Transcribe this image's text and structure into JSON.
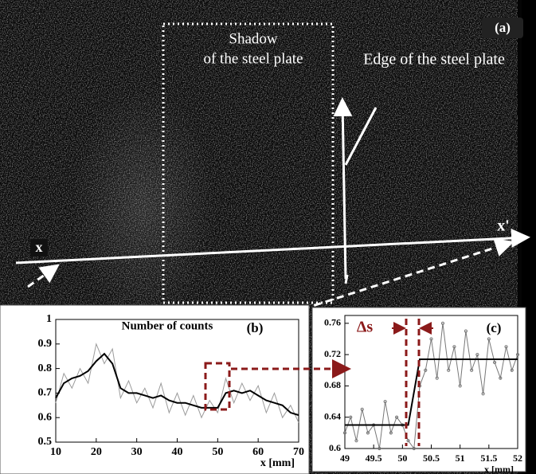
{
  "image": {
    "panel_label": "(a)",
    "shadow_label": [
      "Shadow",
      "of the steel plate"
    ],
    "edge_label": "Edge of  the steel plate",
    "axis_start": "x",
    "axis_end": "x'"
  },
  "chart_data": [
    {
      "type": "line",
      "panel_label": "(b)",
      "inner_label": "Number of counts",
      "xlabel": "x [mm]",
      "x": [
        10,
        12,
        14,
        16,
        18,
        20,
        22,
        24,
        26,
        28,
        30,
        32,
        34,
        36,
        38,
        40,
        42,
        44,
        46,
        48,
        50,
        52,
        54,
        56,
        58,
        60,
        62,
        64,
        66,
        68,
        70
      ],
      "series": [
        {
          "color": "#9a9a9a",
          "values": [
            0.66,
            0.78,
            0.72,
            0.8,
            0.74,
            0.9,
            0.82,
            0.88,
            0.68,
            0.75,
            0.66,
            0.72,
            0.64,
            0.74,
            0.62,
            0.7,
            0.61,
            0.69,
            0.6,
            0.67,
            0.62,
            0.76,
            0.66,
            0.74,
            0.67,
            0.73,
            0.62,
            0.7,
            0.6,
            0.65,
            0.58
          ]
        },
        {
          "color": "#000000",
          "values": [
            0.68,
            0.74,
            0.76,
            0.77,
            0.79,
            0.83,
            0.86,
            0.82,
            0.72,
            0.7,
            0.7,
            0.69,
            0.68,
            0.69,
            0.67,
            0.66,
            0.66,
            0.65,
            0.64,
            0.64,
            0.64,
            0.7,
            0.71,
            0.7,
            0.71,
            0.69,
            0.67,
            0.66,
            0.65,
            0.62,
            0.61
          ]
        }
      ],
      "xlim": [
        10,
        70
      ],
      "xticks": [
        10,
        20,
        30,
        40,
        50,
        60,
        70
      ],
      "ylim": [
        0.5,
        1
      ],
      "yticks": [
        0.5,
        0.6,
        0.7,
        0.8,
        0.9,
        1
      ]
    },
    {
      "type": "line",
      "panel_label": "(c)",
      "annotation": "Δs",
      "xlabel": "x [mm]",
      "x": [
        49,
        49.1,
        49.2,
        49.3,
        49.4,
        49.5,
        49.6,
        49.7,
        49.8,
        49.9,
        50,
        50.1,
        50.2,
        50.3,
        50.4,
        50.5,
        50.6,
        50.7,
        50.8,
        50.9,
        51,
        51.1,
        51.2,
        51.3,
        51.4,
        51.5,
        51.6,
        51.7,
        51.8,
        51.9,
        52
      ],
      "series": [
        {
          "color": "#777777",
          "markers": true,
          "values": [
            0.62,
            0.64,
            0.61,
            0.65,
            0.62,
            0.63,
            0.6,
            0.66,
            0.62,
            0.64,
            0.63,
            0.61,
            0.6,
            0.68,
            0.7,
            0.74,
            0.69,
            0.76,
            0.7,
            0.73,
            0.68,
            0.75,
            0.7,
            0.72,
            0.67,
            0.74,
            0.71,
            0.69,
            0.73,
            0.7,
            0.72
          ]
        },
        {
          "color": "#000000",
          "x": [
            49,
            50.1,
            50.3,
            52
          ],
          "values": [
            0.63,
            0.63,
            0.714,
            0.714
          ]
        }
      ],
      "xlim": [
        49,
        52
      ],
      "xticks": [
        49,
        49.5,
        50,
        50.5,
        51,
        51.5,
        52
      ],
      "ylim": [
        0.6,
        0.77
      ],
      "yticks": [
        0.6,
        0.64,
        0.68,
        0.72,
        0.76
      ]
    }
  ]
}
